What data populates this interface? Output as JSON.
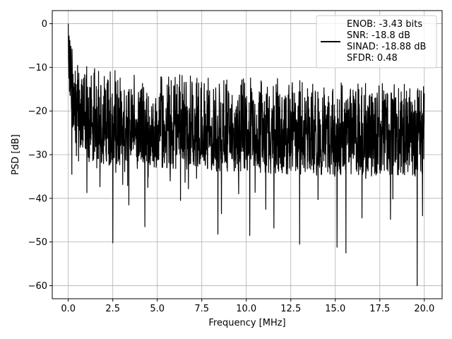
{
  "chart_data": {
    "type": "line",
    "xlabel": "Frequency [MHz]",
    "ylabel": "PSD [dB]",
    "xlim": [
      -0.9,
      21.0
    ],
    "ylim": [
      -63.0,
      3.0
    ],
    "xticks": [
      0.0,
      2.5,
      5.0,
      7.5,
      10.0,
      12.5,
      15.0,
      17.5,
      20.0
    ],
    "xtick_labels": [
      "0.0",
      "2.5",
      "5.0",
      "7.5",
      "10.0",
      "12.5",
      "15.0",
      "17.5",
      "20.0"
    ],
    "yticks": [
      0,
      -10,
      -20,
      -30,
      -40,
      -50,
      -60
    ],
    "ytick_labels": [
      "0",
      "−10",
      "−20",
      "−30",
      "−40",
      "−50",
      "−60"
    ],
    "grid": true,
    "line_color": "#000000",
    "legend": {
      "placement": "top-right",
      "lines": [
        "ENOB: -3.43 bits",
        "SNR: -18.8 dB",
        "SINAD: -18.88 dB",
        "SFDR: 0.48"
      ]
    },
    "series": [
      {
        "x_start": 0.0,
        "x_end": 20.0,
        "envelope_upper_db": [
          [
            0.0,
            0.0
          ],
          [
            0.05,
            -1.0
          ],
          [
            0.3,
            -6.0
          ],
          [
            1.0,
            -9.0
          ],
          [
            3.0,
            -11.0
          ],
          [
            8.0,
            -12.0
          ],
          [
            12.0,
            -12.5
          ],
          [
            16.0,
            -13.5
          ],
          [
            20.0,
            -14.0
          ]
        ],
        "envelope_lower_db": [
          [
            0.0,
            -12.0
          ],
          [
            0.3,
            -28.0
          ],
          [
            1.5,
            -32.0
          ],
          [
            5.0,
            -33.0
          ],
          [
            10.0,
            -34.0
          ],
          [
            15.0,
            -35.0
          ],
          [
            20.0,
            -35.0
          ]
        ],
        "deep_notches": [
          {
            "x": 0.2,
            "y": -34.5
          },
          {
            "x": 1.05,
            "y": -38.7
          },
          {
            "x": 2.5,
            "y": -50.2
          },
          {
            "x": 3.4,
            "y": -41.5
          },
          {
            "x": 4.3,
            "y": -46.5
          },
          {
            "x": 6.3,
            "y": -40.5
          },
          {
            "x": 8.4,
            "y": -48.2
          },
          {
            "x": 8.6,
            "y": -43.5
          },
          {
            "x": 10.2,
            "y": -48.5
          },
          {
            "x": 11.1,
            "y": -42.5
          },
          {
            "x": 11.55,
            "y": -46.8
          },
          {
            "x": 13.0,
            "y": -50.5
          },
          {
            "x": 15.1,
            "y": -51.2
          },
          {
            "x": 15.6,
            "y": -52.5
          },
          {
            "x": 16.5,
            "y": -44.5
          },
          {
            "x": 18.1,
            "y": -44.8
          },
          {
            "x": 19.6,
            "y": -60.0
          },
          {
            "x": 19.9,
            "y": -44.0
          }
        ]
      }
    ]
  }
}
